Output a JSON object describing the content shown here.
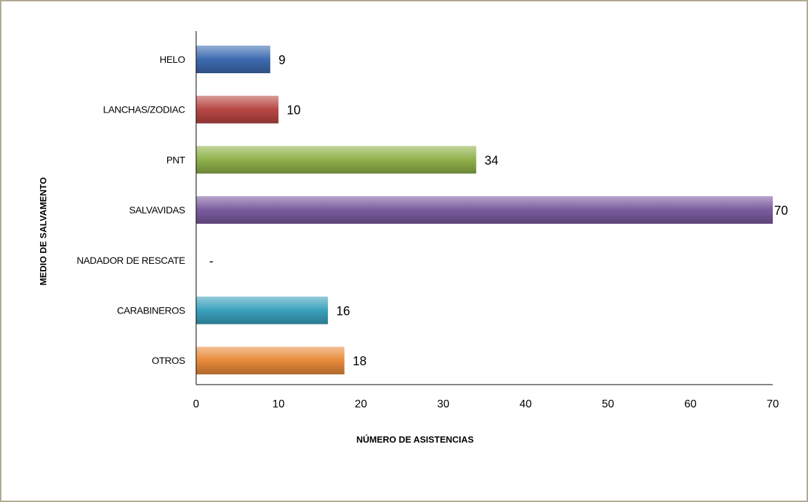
{
  "chart_data": {
    "type": "bar",
    "orientation": "horizontal",
    "categories": [
      "HELO",
      "LANCHAS/ZODIAC",
      "PNT",
      "SALVAVIDAS",
      "NADADOR DE RESCATE",
      "CARABINEROS",
      "OTROS"
    ],
    "values": [
      9,
      10,
      34,
      70,
      null,
      16,
      18
    ],
    "data_labels": [
      "9",
      "10",
      "34",
      "70",
      "-",
      "16",
      "18"
    ],
    "colors": [
      "#3d6bb0",
      "#b84744",
      "#8fb14a",
      "#7a5b9e",
      "#9e9e9e",
      "#3aa1bd",
      "#e88a3a"
    ],
    "xlabel": "NÚMERO DE ASISTENCIAS",
    "ylabel": "MEDIO DE SALVAMENTO",
    "xlim": [
      0,
      70
    ],
    "xticks": [
      0,
      10,
      20,
      30,
      40,
      50,
      60,
      70
    ],
    "grid": false,
    "legend": "none"
  }
}
